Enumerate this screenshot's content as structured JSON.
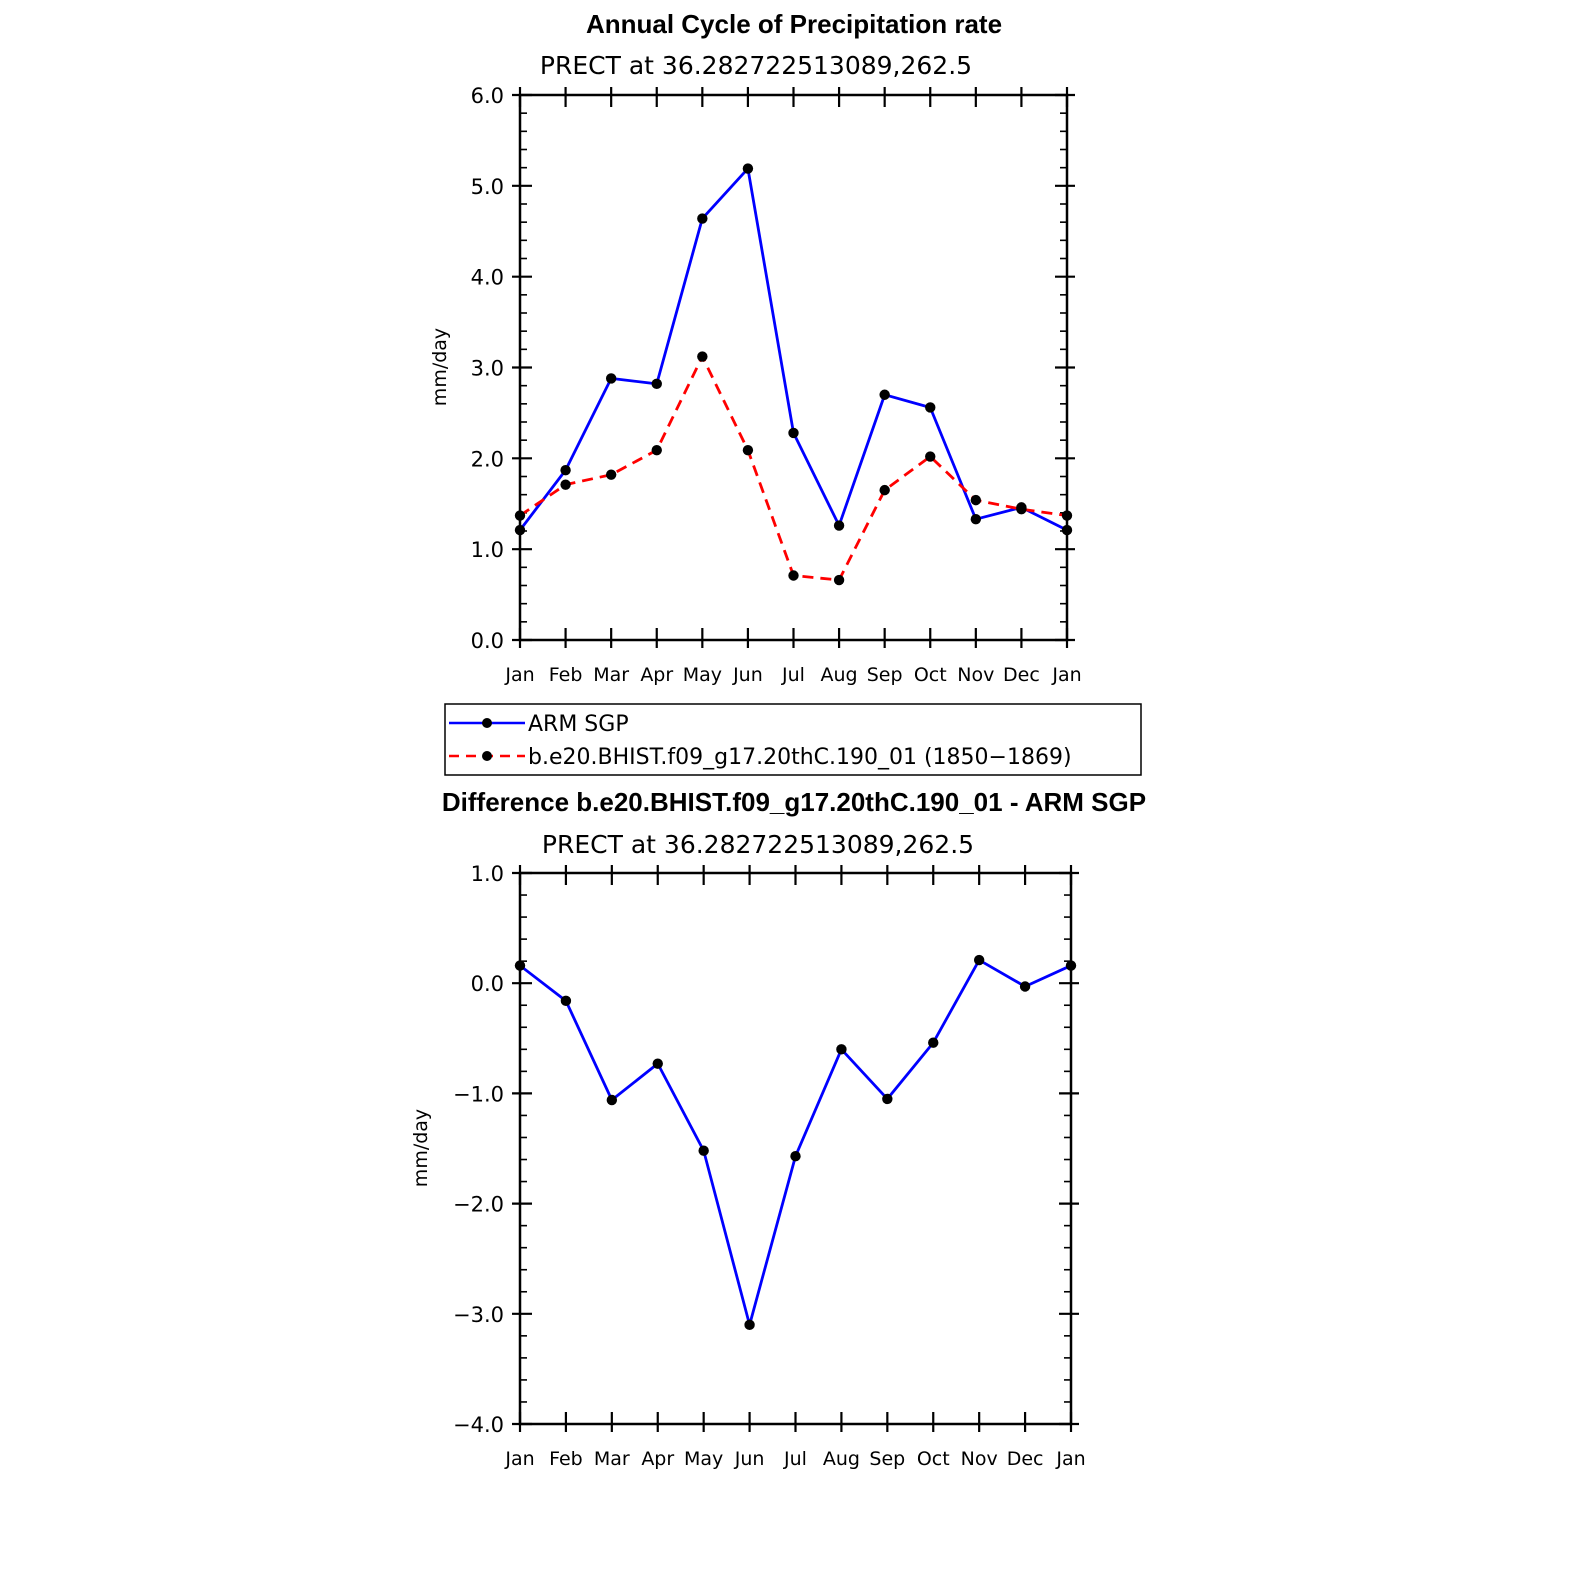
{
  "chart_data": [
    {
      "type": "line",
      "title": "Annual Cycle of Precipitation rate",
      "subtitle": "PRECT at 36.282722513089,262.5",
      "ylabel": "mm/day",
      "xlabel": "",
      "ylim": [
        0,
        6
      ],
      "yticks": [
        0,
        1,
        2,
        3,
        4,
        5,
        6
      ],
      "ytick_labels": [
        "0.0",
        "1.0",
        "2.0",
        "3.0",
        "4.0",
        "5.0",
        "6.0"
      ],
      "categories": [
        "Jan",
        "Feb",
        "Mar",
        "Apr",
        "May",
        "Jun",
        "Jul",
        "Aug",
        "Sep",
        "Oct",
        "Nov",
        "Dec",
        "Jan"
      ],
      "series": [
        {
          "name": "ARM SGP",
          "color": "#0000ff",
          "dash": "solid",
          "values": [
            1.21,
            1.87,
            2.88,
            2.82,
            4.64,
            5.19,
            2.28,
            1.26,
            2.7,
            2.56,
            1.33,
            1.46,
            1.21
          ]
        },
        {
          "name": "b.e20.BHIST.f09_g17.20thC.190_01 (1850−1869)",
          "color": "#ff0000",
          "dash": "dashed",
          "values": [
            1.37,
            1.71,
            1.82,
            2.09,
            3.12,
            2.09,
            0.71,
            0.66,
            1.65,
            2.02,
            1.54,
            1.44,
            1.37
          ]
        }
      ],
      "legend": [
        "ARM SGP",
        "b.e20.BHIST.f09_g17.20thC.190_01 (1850−1869)"
      ]
    },
    {
      "type": "line",
      "title": "Difference b.e20.BHIST.f09_g17.20thC.190_01 - ARM SGP",
      "subtitle": "PRECT at 36.282722513089,262.5",
      "ylabel": "mm/day",
      "xlabel": "",
      "ylim": [
        -4,
        1
      ],
      "yticks": [
        -4,
        -3,
        -2,
        -1,
        0,
        1
      ],
      "ytick_labels": [
        "−4.0",
        "−3.0",
        "−2.0",
        "−1.0",
        "0.0",
        "1.0"
      ],
      "categories": [
        "Jan",
        "Feb",
        "Mar",
        "Apr",
        "May",
        "Jun",
        "Jul",
        "Aug",
        "Sep",
        "Oct",
        "Nov",
        "Dec",
        "Jan"
      ],
      "series": [
        {
          "name": "Difference",
          "color": "#0000ff",
          "dash": "solid",
          "values": [
            0.16,
            -0.16,
            -1.06,
            -0.73,
            -1.52,
            -3.1,
            -1.57,
            -0.6,
            -1.05,
            -0.54,
            0.21,
            -0.03,
            0.16
          ]
        }
      ]
    }
  ]
}
